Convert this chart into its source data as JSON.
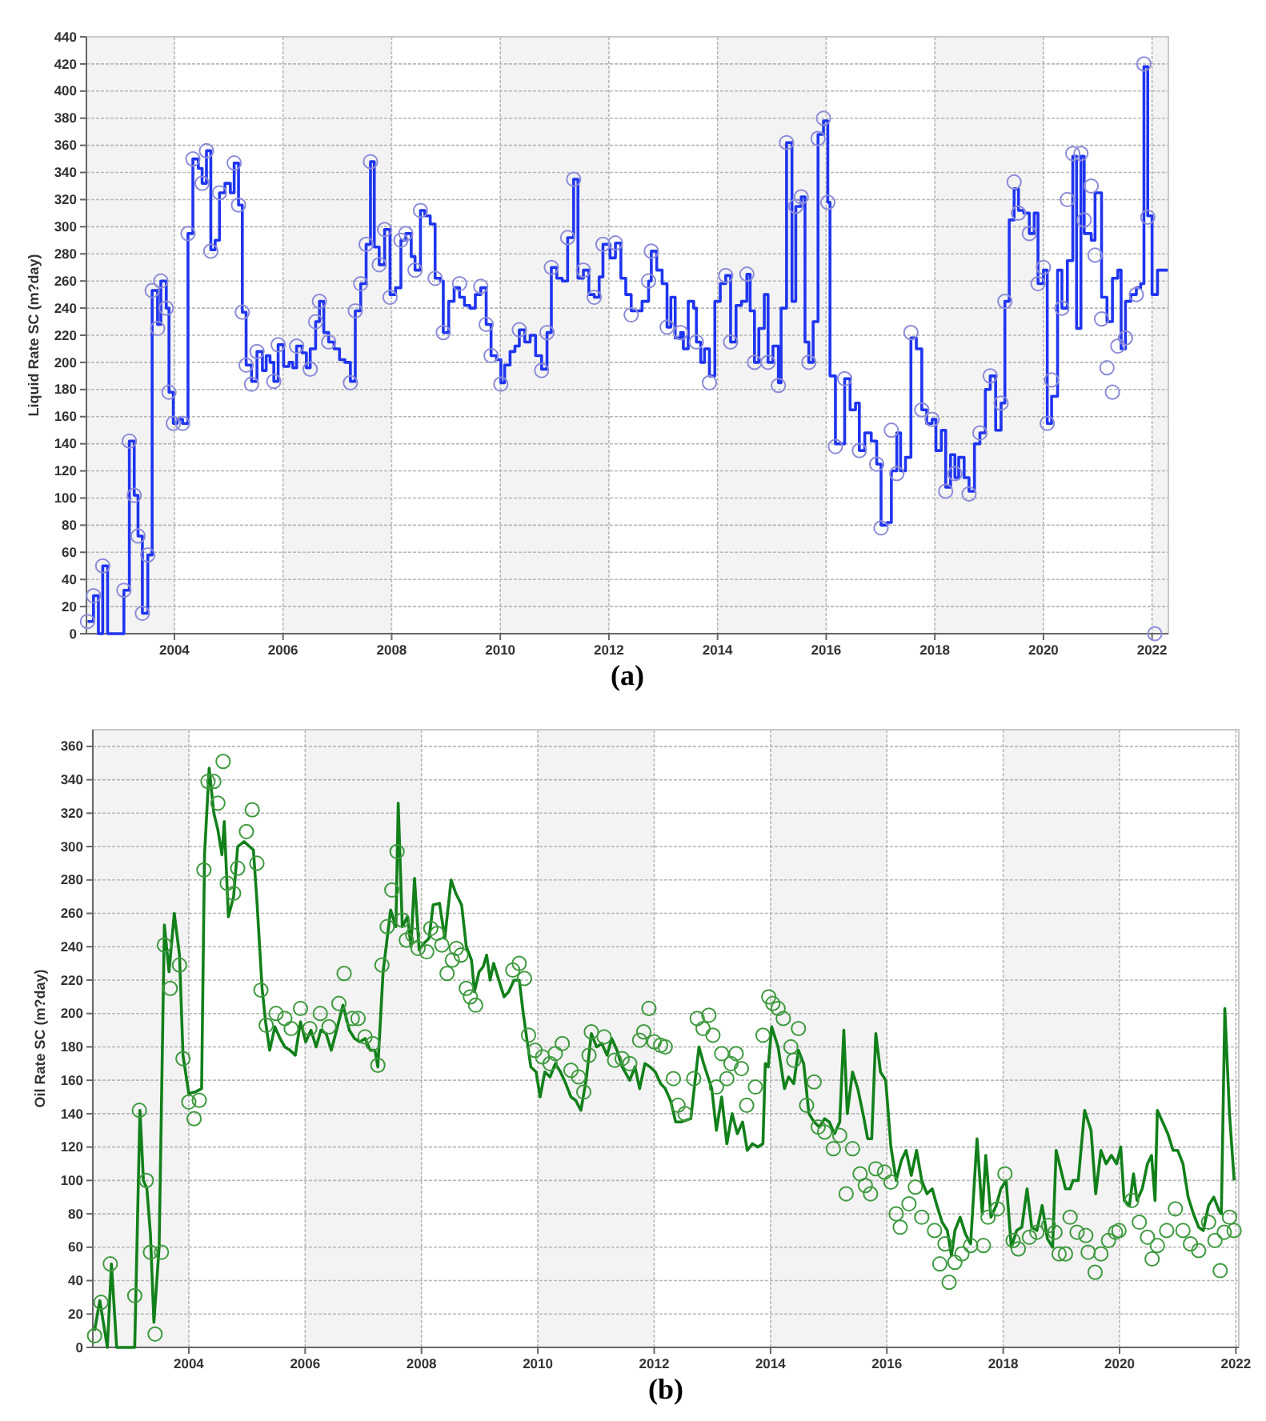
{
  "chart_data": [
    {
      "type": "line",
      "title": "(a)",
      "ylabel": "Liquid Rate SC (m?day)",
      "xlim": [
        2002.38,
        2022.3
      ],
      "xticks": [
        2004,
        2006,
        2008,
        2010,
        2012,
        2014,
        2016,
        2018,
        2020,
        2022
      ],
      "ylim": [
        0,
        440
      ],
      "yticks": [
        0,
        20,
        40,
        60,
        80,
        100,
        120,
        140,
        160,
        180,
        200,
        220,
        240,
        260,
        280,
        300,
        320,
        340,
        360,
        380,
        400,
        420,
        440
      ],
      "grid": true,
      "bands": [
        {
          "axis": "x",
          "from": 2002.38,
          "to": 2004,
          "color": "#f3f3f3"
        },
        {
          "axis": "x",
          "from": 2006,
          "to": 2008,
          "color": "#f3f3f3"
        },
        {
          "axis": "x",
          "from": 2010,
          "to": 2012,
          "color": "#f3f3f3"
        },
        {
          "axis": "x",
          "from": 2014,
          "to": 2016,
          "color": "#f3f3f3"
        },
        {
          "axis": "x",
          "from": 2018,
          "to": 2020,
          "color": "#f3f3f3"
        },
        {
          "axis": "x",
          "from": 2022,
          "to": 2022.3,
          "color": "#f3f3f3"
        }
      ],
      "series": [
        {
          "type": "step",
          "color": "#1f35f0",
          "x": [
            2002.4,
            2002.51,
            2002.6,
            2002.68,
            2002.77,
            2003.07,
            2003.17,
            2003.26,
            2003.33,
            2003.41,
            2003.51,
            2003.59,
            2003.69,
            2003.75,
            2003.85,
            2003.9,
            2003.98,
            2004.05,
            2004.15,
            2004.25,
            2004.34,
            2004.44,
            2004.51,
            2004.59,
            2004.67,
            2004.75,
            2004.83,
            2004.93,
            2005.03,
            2005.1,
            2005.18,
            2005.25,
            2005.32,
            2005.42,
            2005.52,
            2005.62,
            2005.69,
            2005.76,
            2005.83,
            2005.91,
            2006.01,
            2006.11,
            2006.18,
            2006.25,
            2006.35,
            2006.43,
            2006.5,
            2006.6,
            2006.67,
            2006.75,
            2006.84,
            2006.94,
            2007.04,
            2007.14,
            2007.24,
            2007.33,
            2007.43,
            2007.53,
            2007.61,
            2007.68,
            2007.77,
            2007.87,
            2007.97,
            2008.07,
            2008.17,
            2008.26,
            2008.36,
            2008.43,
            2008.53,
            2008.61,
            2008.71,
            2008.8,
            2008.9,
            2008.95,
            2009.05,
            2009.15,
            2009.25,
            2009.34,
            2009.44,
            2009.54,
            2009.64,
            2009.74,
            2009.83,
            2009.93,
            2010.01,
            2010.08,
            2010.18,
            2010.27,
            2010.35,
            2010.45,
            2010.55,
            2010.65,
            2010.76,
            2010.86,
            2010.94,
            2011.04,
            2011.14,
            2011.24,
            2011.35,
            2011.43,
            2011.53,
            2011.63,
            2011.73,
            2011.82,
            2011.89,
            2012.02,
            2012.12,
            2012.22,
            2012.31,
            2012.41,
            2012.51,
            2012.61,
            2012.73,
            2012.78,
            2012.88,
            2012.98,
            2013.07,
            2013.14,
            2013.22,
            2013.32,
            2013.37,
            2013.46,
            2013.56,
            2013.61,
            2013.69,
            2013.76,
            2013.85,
            2013.95,
            2014.05,
            2014.15,
            2014.24,
            2014.34,
            2014.44,
            2014.54,
            2014.6,
            2014.68,
            2014.76,
            2014.86,
            2014.93,
            2015.02,
            2015.12,
            2015.17,
            2015.27,
            2015.37,
            2015.44,
            2015.54,
            2015.61,
            2015.68,
            2015.76,
            2015.85,
            2015.95,
            2016.03,
            2016.07,
            2016.17,
            2016.26,
            2016.34,
            2016.44,
            2016.54,
            2016.61,
            2016.71,
            2016.83,
            2016.93,
            2017.01,
            2017.12,
            2017.2,
            2017.3,
            2017.37,
            2017.46,
            2017.56,
            2017.66,
            2017.76,
            2017.85,
            2017.95,
            2018.02,
            2018.12,
            2018.2,
            2018.29,
            2018.37,
            2018.44,
            2018.54,
            2018.63,
            2018.73,
            2018.83,
            2018.93,
            2019.02,
            2019.12,
            2019.22,
            2019.29,
            2019.37,
            2019.46,
            2019.54,
            2019.64,
            2019.74,
            2019.83,
            2019.9,
            2020.0,
            2020.07,
            2020.15,
            2020.26,
            2020.34,
            2020.44,
            2020.54,
            2020.61,
            2020.69,
            2020.75,
            2020.88,
            2020.95,
            2021.07,
            2021.17,
            2021.27,
            2021.37,
            2021.43,
            2021.51,
            2021.61,
            2021.71,
            2021.79,
            2021.85,
            2021.92,
            2022.0,
            2022.1,
            2022.29
          ],
          "values": [
            9,
            28,
            0,
            50,
            0,
            32,
            142,
            102,
            72,
            15,
            58,
            253,
            228,
            260,
            240,
            178,
            155,
            158,
            155,
            295,
            350,
            343,
            332,
            356,
            283,
            290,
            325,
            332,
            325,
            347,
            316,
            237,
            198,
            186,
            208,
            194,
            205,
            200,
            186,
            213,
            197,
            200,
            196,
            212,
            207,
            196,
            210,
            230,
            245,
            222,
            215,
            210,
            202,
            200,
            186,
            238,
            258,
            287,
            348,
            285,
            272,
            298,
            250,
            255,
            290,
            295,
            278,
            268,
            312,
            308,
            302,
            262,
            260,
            222,
            245,
            255,
            248,
            242,
            240,
            250,
            255,
            228,
            205,
            202,
            185,
            198,
            208,
            212,
            224,
            215,
            220,
            205,
            195,
            222,
            270,
            262,
            260,
            292,
            335,
            262,
            268,
            250,
            248,
            263,
            287,
            277,
            288,
            262,
            250,
            238,
            238,
            245,
            260,
            282,
            268,
            258,
            226,
            248,
            218,
            222,
            210,
            245,
            240,
            215,
            200,
            210,
            190,
            245,
            258,
            264,
            215,
            242,
            245,
            265,
            238,
            200,
            225,
            250,
            200,
            212,
            185,
            240,
            362,
            245,
            315,
            322,
            215,
            200,
            230,
            368,
            378,
            318,
            190,
            140,
            140,
            188,
            165,
            170,
            135,
            148,
            142,
            125,
            80,
            82,
            120,
            148,
            120,
            130,
            218,
            210,
            165,
            155,
            158,
            135,
            150,
            108,
            132,
            115,
            130,
            115,
            105,
            140,
            148,
            180,
            190,
            150,
            170,
            245,
            305,
            328,
            312,
            310,
            295,
            310,
            258,
            268,
            155,
            175,
            268,
            240,
            275,
            352,
            225,
            352,
            295,
            290,
            325,
            248,
            230,
            262,
            268,
            210,
            245,
            250,
            255,
            258,
            418,
            308,
            250,
            268,
            268
          ]
        },
        {
          "type": "scatter",
          "color": "#8c8cd8",
          "marker": "circle",
          "x": [
            2002.4,
            2002.51,
            2002.68,
            2003.07,
            2003.17,
            2003.26,
            2003.33,
            2003.41,
            2003.51,
            2003.59,
            2003.69,
            2003.75,
            2003.85,
            2003.9,
            2003.98,
            2004.15,
            2004.25,
            2004.34,
            2004.51,
            2004.59,
            2004.67,
            2004.83,
            2005.1,
            2005.18,
            2005.25,
            2005.32,
            2005.42,
            2005.52,
            2005.83,
            2005.91,
            2006.25,
            2006.5,
            2006.6,
            2006.67,
            2006.84,
            2007.24,
            2007.33,
            2007.43,
            2007.53,
            2007.61,
            2007.77,
            2007.87,
            2007.97,
            2008.17,
            2008.26,
            2008.43,
            2008.53,
            2008.8,
            2008.95,
            2009.25,
            2009.64,
            2009.74,
            2009.83,
            2010.01,
            2010.35,
            2010.76,
            2010.86,
            2010.94,
            2011.24,
            2011.35,
            2011.53,
            2011.73,
            2011.89,
            2012.12,
            2012.41,
            2012.73,
            2012.78,
            2013.07,
            2013.32,
            2013.61,
            2013.85,
            2014.15,
            2014.24,
            2014.54,
            2014.68,
            2014.93,
            2015.12,
            2015.27,
            2015.44,
            2015.54,
            2015.68,
            2015.85,
            2015.95,
            2016.03,
            2016.17,
            2016.34,
            2016.61,
            2016.93,
            2017.01,
            2017.2,
            2017.3,
            2017.56,
            2017.76,
            2017.95,
            2018.2,
            2018.37,
            2018.63,
            2018.83,
            2019.02,
            2019.22,
            2019.29,
            2019.46,
            2019.54,
            2019.74,
            2019.9,
            2020.0,
            2020.07,
            2020.15,
            2020.34,
            2020.44,
            2020.54,
            2020.69,
            2020.75,
            2020.88,
            2020.95,
            2021.07,
            2021.17,
            2021.27,
            2021.37,
            2021.51,
            2021.71,
            2021.85,
            2021.92,
            2022.05
          ],
          "values": [
            9,
            28,
            50,
            32,
            142,
            102,
            72,
            15,
            58,
            253,
            225,
            260,
            240,
            178,
            155,
            155,
            295,
            350,
            332,
            356,
            282,
            325,
            347,
            316,
            237,
            198,
            184,
            208,
            186,
            213,
            212,
            195,
            230,
            245,
            215,
            185,
            238,
            258,
            287,
            348,
            272,
            298,
            248,
            290,
            295,
            268,
            312,
            262,
            222,
            258,
            256,
            228,
            205,
            184,
            224,
            194,
            222,
            270,
            292,
            335,
            268,
            248,
            287,
            288,
            235,
            260,
            282,
            226,
            222,
            215,
            185,
            264,
            215,
            265,
            200,
            200,
            183,
            362,
            315,
            322,
            200,
            365,
            380,
            318,
            138,
            188,
            135,
            125,
            78,
            150,
            118,
            222,
            165,
            158,
            105,
            118,
            103,
            148,
            190,
            170,
            245,
            333,
            310,
            295,
            258,
            270,
            155,
            187,
            240,
            320,
            354,
            354,
            305,
            330,
            279,
            232,
            196,
            178,
            212,
            218,
            250,
            420,
            307,
            0
          ]
        }
      ]
    },
    {
      "type": "line",
      "title": "(b)",
      "ylabel": "Oil Rate SC (m?day)",
      "xlim": [
        2002.35,
        2022.05
      ],
      "xticks": [
        2004,
        2006,
        2008,
        2010,
        2012,
        2014,
        2016,
        2018,
        2020,
        2022
      ],
      "ylim": [
        0,
        370
      ],
      "yticks": [
        0,
        20,
        40,
        60,
        80,
        100,
        120,
        140,
        160,
        180,
        200,
        220,
        240,
        260,
        280,
        300,
        320,
        340,
        360
      ],
      "grid": true,
      "bands": [
        {
          "axis": "x",
          "from": 2002.35,
          "to": 2004,
          "color": "#f3f3f3"
        },
        {
          "axis": "x",
          "from": 2006,
          "to": 2008,
          "color": "#f3f3f3"
        },
        {
          "axis": "x",
          "from": 2010,
          "to": 2012,
          "color": "#f3f3f3"
        },
        {
          "axis": "x",
          "from": 2014,
          "to": 2016,
          "color": "#f3f3f3"
        },
        {
          "axis": "x",
          "from": 2018,
          "to": 2020,
          "color": "#f3f3f3"
        }
      ],
      "series": [
        {
          "type": "line",
          "color": "#12801a",
          "x": [
            2002.38,
            2002.47,
            2002.6,
            2002.67,
            2002.76,
            2003.07,
            2003.16,
            2003.22,
            2003.28,
            2003.34,
            2003.4,
            2003.49,
            2003.58,
            2003.66,
            2003.75,
            2003.84,
            2003.9,
            2004.0,
            2004.11,
            2004.22,
            2004.27,
            2004.35,
            2004.43,
            2004.5,
            2004.57,
            2004.61,
            2004.68,
            2004.77,
            2004.84,
            2004.95,
            2005.11,
            2005.17,
            2005.26,
            2005.32,
            2005.39,
            2005.48,
            2005.57,
            2005.65,
            2005.74,
            2005.83,
            2005.92,
            2006.01,
            2006.1,
            2006.19,
            2006.27,
            2006.36,
            2006.45,
            2006.54,
            2006.65,
            2006.76,
            2006.85,
            2006.94,
            2007.03,
            2007.12,
            2007.2,
            2007.25,
            2007.34,
            2007.41,
            2007.47,
            2007.56,
            2007.6,
            2007.67,
            2007.76,
            2007.82,
            2007.88,
            2007.96,
            2008.04,
            2008.13,
            2008.2,
            2008.31,
            2008.4,
            2008.51,
            2008.59,
            2008.69,
            2008.77,
            2008.86,
            2008.91,
            2008.99,
            2009.06,
            2009.12,
            2009.18,
            2009.24,
            2009.33,
            2009.42,
            2009.5,
            2009.59,
            2009.68,
            2009.75,
            2009.81,
            2009.88,
            2009.97,
            2010.04,
            2010.12,
            2010.21,
            2010.3,
            2010.39,
            2010.48,
            2010.57,
            2010.65,
            2010.74,
            2010.83,
            2010.92,
            2011.01,
            2011.1,
            2011.19,
            2011.27,
            2011.36,
            2011.45,
            2011.58,
            2011.67,
            2011.75,
            2011.84,
            2011.93,
            2012.02,
            2012.11,
            2012.19,
            2012.28,
            2012.37,
            2012.46,
            2012.63,
            2012.72,
            2012.77,
            2012.85,
            2012.99,
            2013.07,
            2013.16,
            2013.25,
            2013.34,
            2013.43,
            2013.52,
            2013.6,
            2013.69,
            2013.78,
            2013.87,
            2013.91,
            2013.96,
            2014.02,
            2014.13,
            2014.24,
            2014.31,
            2014.4,
            2014.48,
            2014.57,
            2014.66,
            2014.75,
            2014.84,
            2014.93,
            2015.01,
            2015.1,
            2015.19,
            2015.26,
            2015.32,
            2015.41,
            2015.5,
            2015.59,
            2015.67,
            2015.74,
            2015.81,
            2015.89,
            2015.98,
            2016.07,
            2016.16,
            2016.25,
            2016.33,
            2016.42,
            2016.51,
            2016.6,
            2016.69,
            2016.78,
            2016.86,
            2016.95,
            2017.04,
            2017.11,
            2017.17,
            2017.26,
            2017.35,
            2017.44,
            2017.55,
            2017.64,
            2017.7,
            2017.79,
            2017.88,
            2017.96,
            2018.05,
            2018.14,
            2018.23,
            2018.32,
            2018.41,
            2018.49,
            2018.58,
            2018.67,
            2018.76,
            2018.85,
            2018.91,
            2018.98,
            2019.07,
            2019.15,
            2019.2,
            2019.29,
            2019.4,
            2019.51,
            2019.59,
            2019.68,
            2019.77,
            2019.86,
            2019.95,
            2020.02,
            2020.08,
            2020.17,
            2020.24,
            2020.3,
            2020.39,
            2020.48,
            2020.55,
            2020.61,
            2020.65,
            2020.74,
            2020.83,
            2020.92,
            2021.0,
            2021.09,
            2021.18,
            2021.27,
            2021.36,
            2021.44,
            2021.53,
            2021.62,
            2021.71,
            2021.75,
            2021.81,
            2021.89,
            2021.97
          ],
          "values": [
            10,
            28,
            0,
            50,
            0,
            0,
            142,
            100,
            95,
            68,
            15,
            60,
            253,
            225,
            260,
            235,
            175,
            152,
            153,
            155,
            295,
            347,
            320,
            310,
            295,
            315,
            258,
            270,
            300,
            303,
            298,
            268,
            215,
            195,
            178,
            192,
            185,
            180,
            178,
            175,
            195,
            183,
            190,
            180,
            190,
            188,
            178,
            190,
            205,
            190,
            185,
            183,
            185,
            178,
            178,
            168,
            225,
            245,
            262,
            252,
            326,
            252,
            258,
            240,
            281,
            238,
            242,
            245,
            265,
            266,
            245,
            280,
            272,
            265,
            240,
            232,
            213,
            225,
            228,
            235,
            220,
            230,
            220,
            210,
            213,
            220,
            220,
            200,
            185,
            168,
            165,
            150,
            165,
            162,
            170,
            165,
            158,
            150,
            148,
            142,
            160,
            188,
            180,
            182,
            175,
            185,
            178,
            168,
            160,
            168,
            155,
            170,
            168,
            165,
            158,
            155,
            148,
            135,
            135,
            137,
            165,
            180,
            170,
            155,
            130,
            150,
            122,
            140,
            128,
            135,
            118,
            122,
            120,
            122,
            170,
            168,
            192,
            180,
            155,
            162,
            158,
            178,
            170,
            140,
            135,
            132,
            137,
            135,
            128,
            135,
            190,
            140,
            165,
            155,
            140,
            125,
            125,
            188,
            165,
            160,
            120,
            100,
            112,
            118,
            103,
            118,
            100,
            92,
            95,
            85,
            75,
            70,
            55,
            70,
            78,
            68,
            62,
            125,
            80,
            115,
            78,
            85,
            95,
            100,
            60,
            70,
            72,
            95,
            72,
            70,
            85,
            65,
            60,
            118,
            108,
            95,
            95,
            100,
            100,
            142,
            130,
            92,
            118,
            110,
            115,
            110,
            120,
            88,
            85,
            104,
            88,
            95,
            110,
            115,
            88,
            142,
            135,
            128,
            118,
            118,
            110,
            90,
            80,
            72,
            70,
            85,
            90,
            82,
            80,
            203,
            140,
            100
          ]
        },
        {
          "type": "scatter",
          "color": "#3f9a3f",
          "marker": "circle",
          "x": [
            2002.38,
            2002.49,
            2002.65,
            2003.07,
            2003.15,
            2003.27,
            2003.34,
            2003.42,
            2003.53,
            2003.58,
            2003.68,
            2003.84,
            2003.9,
            2004.0,
            2004.09,
            2004.18,
            2004.26,
            2004.33,
            2004.43,
            2004.5,
            2004.59,
            2004.66,
            2004.77,
            2004.84,
            2004.99,
            2005.09,
            2005.17,
            2005.24,
            2005.33,
            2005.5,
            2005.65,
            2005.76,
            2005.92,
            2006.08,
            2006.26,
            2006.41,
            2006.58,
            2006.67,
            2006.81,
            2006.91,
            2007.03,
            2007.16,
            2007.25,
            2007.32,
            2007.41,
            2007.49,
            2007.58,
            2007.67,
            2007.74,
            2007.85,
            2007.94,
            2008.09,
            2008.16,
            2008.27,
            2008.35,
            2008.44,
            2008.53,
            2008.6,
            2008.68,
            2008.77,
            2008.84,
            2008.93,
            2009.57,
            2009.68,
            2009.77,
            2009.84,
            2009.95,
            2010.08,
            2010.21,
            2010.3,
            2010.42,
            2010.57,
            2010.7,
            2010.79,
            2010.88,
            2010.92,
            2011.14,
            2011.32,
            2011.45,
            2011.58,
            2011.75,
            2011.82,
            2011.91,
            2012.0,
            2012.11,
            2012.19,
            2012.33,
            2012.41,
            2012.53,
            2012.68,
            2012.74,
            2012.84,
            2012.94,
            2013.01,
            2013.07,
            2013.16,
            2013.25,
            2013.32,
            2013.41,
            2013.5,
            2013.59,
            2013.74,
            2013.87,
            2013.97,
            2014.04,
            2014.13,
            2014.22,
            2014.35,
            2014.4,
            2014.48,
            2014.62,
            2014.75,
            2014.82,
            2014.93,
            2015.08,
            2015.19,
            2015.3,
            2015.41,
            2015.54,
            2015.63,
            2015.72,
            2015.81,
            2015.96,
            2016.07,
            2016.16,
            2016.23,
            2016.38,
            2016.49,
            2016.6,
            2016.82,
            2016.91,
            2017.0,
            2017.07,
            2017.17,
            2017.29,
            2017.44,
            2017.66,
            2017.74,
            2017.9,
            2018.03,
            2018.17,
            2018.26,
            2018.45,
            2018.58,
            2018.78,
            2018.89,
            2018.96,
            2019.07,
            2019.15,
            2019.27,
            2019.42,
            2019.46,
            2019.58,
            2019.68,
            2019.81,
            2019.93,
            2019.99,
            2020.21,
            2020.34,
            2020.48,
            2020.56,
            2020.65,
            2020.81,
            2020.96,
            2021.09,
            2021.22,
            2021.36,
            2021.53,
            2021.64,
            2021.73,
            2021.8,
            2021.89,
            2021.97
          ],
          "values": [
            7,
            27,
            50,
            31,
            142,
            100,
            57,
            8,
            57,
            241,
            215,
            229,
            173,
            147,
            137,
            148,
            286,
            339,
            339,
            326,
            351,
            278,
            272,
            287,
            309,
            322,
            290,
            214,
            193,
            200,
            197,
            191,
            203,
            191,
            200,
            192,
            206,
            224,
            197,
            197,
            186,
            182,
            169,
            229,
            252,
            274,
            297,
            256,
            244,
            247,
            239,
            237,
            251,
            248,
            241,
            224,
            232,
            239,
            235,
            215,
            210,
            205,
            226,
            230,
            221,
            187,
            178,
            174,
            170,
            176,
            182,
            166,
            162,
            153,
            175,
            189,
            186,
            172,
            173,
            170,
            184,
            189,
            203,
            183,
            181,
            180,
            161,
            145,
            140,
            161,
            197,
            191,
            199,
            187,
            156,
            176,
            161,
            170,
            176,
            167,
            145,
            156,
            187,
            210,
            206,
            203,
            197,
            180,
            172,
            191,
            145,
            159,
            132,
            129,
            119,
            127,
            92,
            119,
            104,
            97,
            92,
            107,
            105,
            99,
            80,
            72,
            86,
            96,
            78,
            70,
            50,
            62,
            39,
            51,
            56,
            61,
            61,
            78,
            83,
            104,
            64,
            59,
            66,
            69,
            73,
            69,
            56,
            56,
            78,
            69,
            67,
            57,
            45,
            56,
            64,
            69,
            70,
            88,
            75,
            66,
            53,
            61,
            70,
            83,
            70,
            62,
            58,
            75,
            64,
            46,
            69,
            78,
            70
          ]
        }
      ]
    }
  ]
}
